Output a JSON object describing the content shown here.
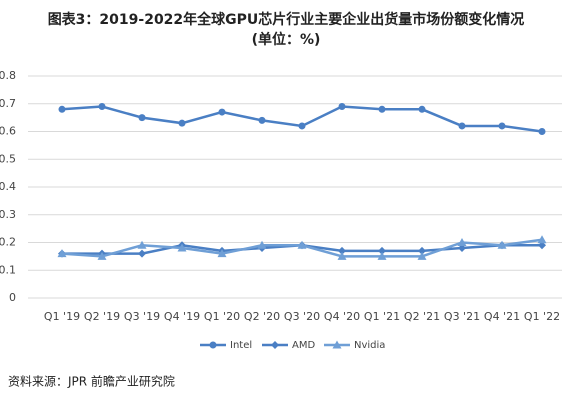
{
  "chart_data": {
    "type": "line",
    "title": "图表3：2019-2022年全球GPU芯片行业主要企业出货量市场份额变化情况",
    "subtitle": "(单位：%)",
    "source": "资料来源：JPR 前瞻产业研究院",
    "categories": [
      "Q1 '19",
      "Q2 '19",
      "Q3 '19",
      "Q4 '19",
      "Q1 '20",
      "Q2 '20",
      "Q3 '20",
      "Q4 '20",
      "Q1 '21",
      "Q2 '21",
      "Q3 '21",
      "Q4 '21",
      "Q1 '22"
    ],
    "series": [
      {
        "name": "Intel",
        "color": "#4a7fc4",
        "marker": "circle",
        "values": [
          0.68,
          0.69,
          0.65,
          0.63,
          0.67,
          0.64,
          0.62,
          0.69,
          0.68,
          0.68,
          0.62,
          0.62,
          0.6
        ]
      },
      {
        "name": "AMD",
        "color": "#4a7fc4",
        "marker": "diamond",
        "values": [
          0.16,
          0.16,
          0.16,
          0.19,
          0.17,
          0.18,
          0.19,
          0.17,
          0.17,
          0.17,
          0.18,
          0.19,
          0.19
        ]
      },
      {
        "name": "Nvidia",
        "color": "#6f9fd6",
        "marker": "triangle",
        "values": [
          0.16,
          0.15,
          0.19,
          0.18,
          0.16,
          0.19,
          0.19,
          0.15,
          0.15,
          0.15,
          0.2,
          0.19,
          0.21
        ]
      }
    ],
    "ylim": [
      0,
      0.8
    ],
    "yticks": [
      0,
      0.1,
      0.2,
      0.3,
      0.4,
      0.5,
      0.6,
      0.7,
      0.8
    ],
    "grid": true,
    "legend": "bottom"
  }
}
